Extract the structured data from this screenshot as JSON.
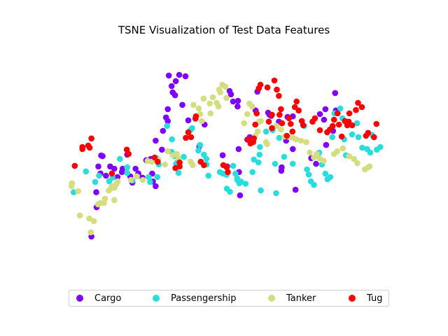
{
  "chart_data": {
    "type": "scatter",
    "title": "TSNE Visualization of Test Data Features",
    "xlabel": "",
    "ylabel": "",
    "axes_visible": false,
    "xlim": [
      0,
      100
    ],
    "ylim": [
      0,
      100
    ],
    "legend_position": "bottom",
    "series": [
      {
        "name": "Cargo",
        "color": "#8000ff",
        "points": [
          [
            12.8,
            40.7
          ],
          [
            10.2,
            12.5
          ],
          [
            11.6,
            32.3
          ],
          [
            11.7,
            25.6
          ],
          [
            12.2,
            43.8
          ],
          [
            13.4,
            48.4
          ],
          [
            13.0,
            48.7
          ],
          [
            14.4,
            39.7
          ],
          [
            15.6,
            43.8
          ],
          [
            16.8,
            42.8
          ],
          [
            17.7,
            39.1
          ],
          [
            19.0,
            41.3
          ],
          [
            19.2,
            42.8
          ],
          [
            20.5,
            49.1
          ],
          [
            21.4,
            39.4
          ],
          [
            22.0,
            36.6
          ],
          [
            22.9,
            42.8
          ],
          [
            23.7,
            40.7
          ],
          [
            24.9,
            38.8
          ],
          [
            26.0,
            46.6
          ],
          [
            27.3,
            47.2
          ],
          [
            27.7,
            40.6
          ],
          [
            27.9,
            37.1
          ],
          [
            28.7,
            35.0
          ],
          [
            28.7,
            55.3
          ],
          [
            30.5,
            51.3
          ],
          [
            30.8,
            59.7
          ],
          [
            31.7,
            65.7
          ],
          [
            32.2,
            69.4
          ],
          [
            32.2,
            64.1
          ],
          [
            32.5,
            84.4
          ],
          [
            33.3,
            79.7
          ],
          [
            33.6,
            76.9
          ],
          [
            34.3,
            75.6
          ],
          [
            35.5,
            84.7
          ],
          [
            34.5,
            81.9
          ],
          [
            36.4,
            71.3
          ],
          [
            37.3,
            84.1
          ],
          [
            38.1,
            64.4
          ],
          [
            41.3,
            52.8
          ],
          [
            42.8,
            62.5
          ],
          [
            48.0,
            48.8
          ],
          [
            49.3,
            43.8
          ],
          [
            50.0,
            77.5
          ],
          [
            50.4,
            76.0
          ],
          [
            51.0,
            72.8
          ],
          [
            52.3,
            70.6
          ],
          [
            52.6,
            51.6
          ],
          [
            52.4,
            73.1
          ],
          [
            52.7,
            41.3
          ],
          [
            53.0,
            30.9
          ],
          [
            55.1,
            55.8
          ],
          [
            55.8,
            56.9
          ],
          [
            57.5,
            68.8
          ],
          [
            58.0,
            77.2
          ],
          [
            61.1,
            67.8
          ],
          [
            61.5,
            66.9
          ],
          [
            62.0,
            66.4
          ],
          [
            64.2,
            63.8
          ],
          [
            64.9,
            41.9
          ],
          [
            65.0,
            43.4
          ],
          [
            66.3,
            55.3
          ],
          [
            66.7,
            65.9
          ],
          [
            68.2,
            66.2
          ],
          [
            68.2,
            51.6
          ],
          [
            69.0,
            33.4
          ],
          [
            73.5,
            47.5
          ],
          [
            74.9,
            45.0
          ],
          [
            76.0,
            67.2
          ],
          [
            77.2,
            64.7
          ],
          [
            77.6,
            69.4
          ],
          [
            77.8,
            53.4
          ],
          [
            79.8,
            59.7
          ],
          [
            80.4,
            76.6
          ],
          [
            80.6,
            68.8
          ]
        ]
      },
      {
        "name": "Passengership",
        "color": "#2adddd",
        "points": [
          [
            5.1,
            32.3
          ],
          [
            8.6,
            41.6
          ],
          [
            11.3,
            36.9
          ],
          [
            12.4,
            39.7
          ],
          [
            15.3,
            37.2
          ],
          [
            16.3,
            38.8
          ],
          [
            18.4,
            47.2
          ],
          [
            20.5,
            43.4
          ],
          [
            20.5,
            40.9
          ],
          [
            22.0,
            37.5
          ],
          [
            26.7,
            39.1
          ],
          [
            27.1,
            36.9
          ],
          [
            29.0,
            47.5
          ],
          [
            29.6,
            44.7
          ],
          [
            29.2,
            39.1
          ],
          [
            32.0,
            61.9
          ],
          [
            33.4,
            55.9
          ],
          [
            33.3,
            50.3
          ],
          [
            34.1,
            48.4
          ],
          [
            34.6,
            45.0
          ],
          [
            34.9,
            45.6
          ],
          [
            35.3,
            40.9
          ],
          [
            36.8,
            48.1
          ],
          [
            38.7,
            60.0
          ],
          [
            39.2,
            60.9
          ],
          [
            40.1,
            65.0
          ],
          [
            41.5,
            53.4
          ],
          [
            41.0,
            50.9
          ],
          [
            42.6,
            49.1
          ],
          [
            43.3,
            47.2
          ],
          [
            43.4,
            44.7
          ],
          [
            43.9,
            39.7
          ],
          [
            47.2,
            41.3
          ],
          [
            48.1,
            40.6
          ],
          [
            49.1,
            40.1
          ],
          [
            49.2,
            33.9
          ],
          [
            50.1,
            32.5
          ],
          [
            51.0,
            44.1
          ],
          [
            51.7,
            40.6
          ],
          [
            52.2,
            38.5
          ],
          [
            52.2,
            37.8
          ],
          [
            52.8,
            36.3
          ],
          [
            53.3,
            37.0
          ],
          [
            54.6,
            36.1
          ],
          [
            56.6,
            41.3
          ],
          [
            57.0,
            46.9
          ],
          [
            58.3,
            45.6
          ],
          [
            58.6,
            49.1
          ],
          [
            58.7,
            52.5
          ],
          [
            59.0,
            33.1
          ],
          [
            60.5,
            59.4
          ],
          [
            62.4,
            60.0
          ],
          [
            63.4,
            31.9
          ],
          [
            63.1,
            45.0
          ],
          [
            64.3,
            56.6
          ],
          [
            65.7,
            48.1
          ],
          [
            68.2,
            45.0
          ],
          [
            71.5,
            61.9
          ],
          [
            72.3,
            42.5
          ],
          [
            72.8,
            40.2
          ],
          [
            73.4,
            37.2
          ],
          [
            74.3,
            35.6
          ],
          [
            75.8,
            50.0
          ],
          [
            76.6,
            44.7
          ],
          [
            77.6,
            40.6
          ],
          [
            78.2,
            38.1
          ],
          [
            79.0,
            39.1
          ],
          [
            79.6,
            56.9
          ],
          [
            80.2,
            67.5
          ],
          [
            81.9,
            69.7
          ],
          [
            82.5,
            65.3
          ],
          [
            83.0,
            55.9
          ],
          [
            83.5,
            48.8
          ],
          [
            85.3,
            58.1
          ],
          [
            86.7,
            63.1
          ],
          [
            87.1,
            56.9
          ],
          [
            88.2,
            52.2
          ],
          [
            89.6,
            51.6
          ],
          [
            90.5,
            50.0
          ],
          [
            91.0,
            57.9
          ],
          [
            92.4,
            51.3
          ],
          [
            93.4,
            52.5
          ]
        ]
      },
      {
        "name": "Tanker",
        "color": "#d4dd80",
        "points": [
          [
            4.5,
            35.0
          ],
          [
            4.6,
            36.3
          ],
          [
            6.4,
            32.8
          ],
          [
            6.9,
            21.9
          ],
          [
            9.6,
            20.6
          ],
          [
            10.0,
            14.4
          ],
          [
            10.9,
            19.4
          ],
          [
            12.1,
            26.9
          ],
          [
            12.8,
            27.5
          ],
          [
            13.8,
            27.5
          ],
          [
            14.1,
            29.4
          ],
          [
            15.2,
            33.1
          ],
          [
            15.9,
            34.1
          ],
          [
            16.8,
            28.8
          ],
          [
            16.1,
            35.0
          ],
          [
            16.9,
            34.4
          ],
          [
            17.4,
            35.9
          ],
          [
            17.8,
            37.2
          ],
          [
            21.6,
            37.8
          ],
          [
            23.3,
            39.4
          ],
          [
            25.0,
            37.8
          ],
          [
            26.4,
            46.3
          ],
          [
            27.6,
            45.9
          ],
          [
            29.5,
            46.9
          ],
          [
            31.4,
            44.7
          ],
          [
            32.2,
            50.6
          ],
          [
            33.6,
            48.8
          ],
          [
            34.8,
            49.4
          ],
          [
            35.3,
            47.5
          ],
          [
            38.8,
            45.9
          ],
          [
            39.4,
            44.4
          ],
          [
            39.6,
            71.3
          ],
          [
            41.5,
            67.2
          ],
          [
            41.1,
            69.7
          ],
          [
            42.0,
            64.1
          ],
          [
            42.5,
            74.1
          ],
          [
            44.5,
            67.5
          ],
          [
            44.3,
            71.9
          ],
          [
            45.2,
            74.7
          ],
          [
            46.3,
            72.2
          ],
          [
            46.8,
            70.6
          ],
          [
            47.0,
            78.1
          ],
          [
            47.3,
            76.9
          ],
          [
            47.9,
            80.3
          ],
          [
            48.8,
            79.4
          ],
          [
            49.1,
            74.4
          ],
          [
            54.2,
            63.1
          ],
          [
            55.1,
            67.2
          ],
          [
            55.7,
            71.9
          ],
          [
            56.5,
            70.6
          ],
          [
            57.4,
            57.5
          ],
          [
            58.1,
            59.4
          ],
          [
            58.5,
            63.8
          ],
          [
            59.0,
            64.1
          ],
          [
            60.5,
            54.7
          ],
          [
            60.8,
            53.8
          ],
          [
            63.5,
            61.9
          ],
          [
            64.8,
            60.3
          ],
          [
            65.8,
            57.2
          ],
          [
            66.3,
            57.5
          ],
          [
            67.2,
            56.9
          ],
          [
            68.3,
            56.6
          ],
          [
            69.2,
            55.9
          ],
          [
            70.6,
            55.3
          ],
          [
            72.1,
            54.7
          ],
          [
            73.1,
            50.0
          ],
          [
            74.3,
            47.8
          ],
          [
            75.1,
            49.4
          ],
          [
            75.9,
            47.5
          ],
          [
            77.1,
            46.3
          ],
          [
            80.1,
            49.4
          ],
          [
            81.0,
            50.6
          ],
          [
            82.6,
            51.9
          ],
          [
            84.4,
            48.4
          ],
          [
            85.8,
            47.2
          ],
          [
            86.8,
            45.3
          ],
          [
            89.0,
            42.5
          ],
          [
            89.9,
            43.4
          ],
          [
            90.3,
            43.8
          ]
        ]
      },
      {
        "name": "Tug",
        "color": "#ff0000",
        "points": [
          [
            5.4,
            44.1
          ],
          [
            7.6,
            51.6
          ],
          [
            7.6,
            52.5
          ],
          [
            9.3,
            53.1
          ],
          [
            9.7,
            52.2
          ],
          [
            10.2,
            56.3
          ],
          [
            16.1,
            40.7
          ],
          [
            20.4,
            51.3
          ],
          [
            20.9,
            49.4
          ],
          [
            28.4,
            47.8
          ],
          [
            29.3,
            45.9
          ],
          [
            34.4,
            43.1
          ],
          [
            35.6,
            43.8
          ],
          [
            35.6,
            45.6
          ],
          [
            37.4,
            56.6
          ],
          [
            38.1,
            59.1
          ],
          [
            38.9,
            56.9
          ],
          [
            40.2,
            65.3
          ],
          [
            40.3,
            66.2
          ],
          [
            41.7,
            45.9
          ],
          [
            42.6,
            44.4
          ],
          [
            48.2,
            44.4
          ],
          [
            49.2,
            43.4
          ],
          [
            49.5,
            41.3
          ],
          [
            55.3,
            55.9
          ],
          [
            56.0,
            54.1
          ],
          [
            56.8,
            54.7
          ],
          [
            57.0,
            56.3
          ],
          [
            57.4,
            62.5
          ],
          [
            57.8,
            67.5
          ],
          [
            58.4,
            78.7
          ],
          [
            58.9,
            80.3
          ],
          [
            60.9,
            79.1
          ],
          [
            61.3,
            63.8
          ],
          [
            62.2,
            66.9
          ],
          [
            62.2,
            60.9
          ],
          [
            62.9,
            82.2
          ],
          [
            63.6,
            78.1
          ],
          [
            64.2,
            75.3
          ],
          [
            64.4,
            66.9
          ],
          [
            64.8,
            69.4
          ],
          [
            65.1,
            63.1
          ],
          [
            66.5,
            57.5
          ],
          [
            67.1,
            65.3
          ],
          [
            67.6,
            62.8
          ],
          [
            68.1,
            59.4
          ],
          [
            68.8,
            70.3
          ],
          [
            69.3,
            72.8
          ],
          [
            69.9,
            68.8
          ],
          [
            70.8,
            64.1
          ],
          [
            71.2,
            62.2
          ],
          [
            73.9,
            63.8
          ],
          [
            74.6,
            65.3
          ],
          [
            76.0,
            60.0
          ],
          [
            78.1,
            59.1
          ],
          [
            78.9,
            60.3
          ],
          [
            79.7,
            61.9
          ],
          [
            80.1,
            64.7
          ],
          [
            81.1,
            67.5
          ],
          [
            81.5,
            62.5
          ],
          [
            82.3,
            57.2
          ],
          [
            83.2,
            64.1
          ],
          [
            83.9,
            62.2
          ],
          [
            84.3,
            63.8
          ],
          [
            84.5,
            67.5
          ],
          [
            85.3,
            62.2
          ],
          [
            86.4,
            69.0
          ],
          [
            87.0,
            72.2
          ],
          [
            88.1,
            70.3
          ],
          [
            89.3,
            57.5
          ],
          [
            89.9,
            58.8
          ],
          [
            91.6,
            56.9
          ],
          [
            92.3,
            62.8
          ]
        ]
      }
    ]
  }
}
